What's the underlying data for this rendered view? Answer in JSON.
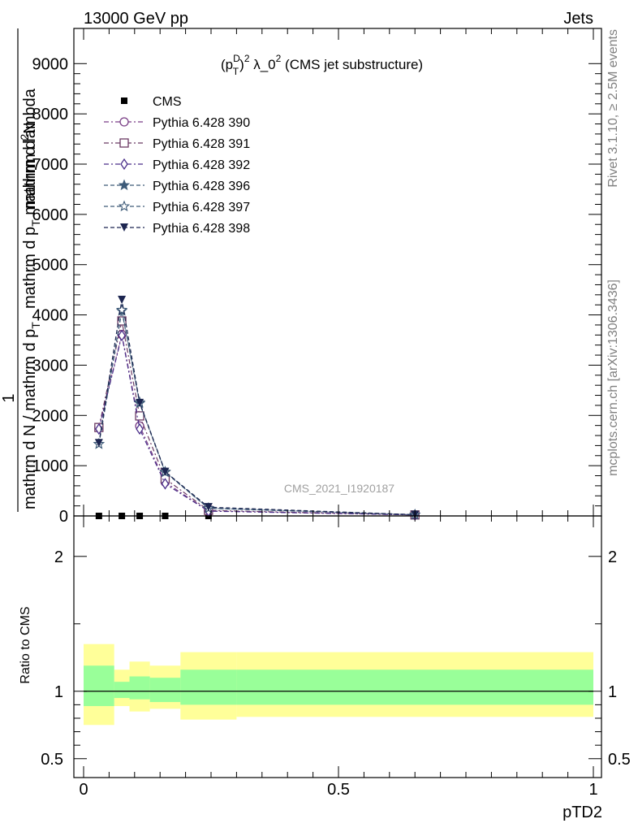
{
  "header": {
    "left": "13000 GeV pp",
    "right": "Jets"
  },
  "side": {
    "rivet": "Rivet 3.1.10, ≥ 2.5M events",
    "mcplots": "mcplots.cern.ch [arXiv:1306.3436]"
  },
  "watermark": "CMS_2021_I1920187",
  "chart_data": [
    {
      "type": "line",
      "title": "(p_T^D)^2 λ_0^2 (CMS jet substructure)",
      "title_parts": {
        "pre": "(p",
        "sup1": "D",
        "sub1": "T",
        "mid": ")",
        "sup2": "2",
        "post": " λ_0",
        "sup3": "2",
        "end": " (CMS jet substructure)"
      },
      "ylabel": "1 / mathrm d N / mathrm d p_T mathrm d p_T mathrm d lambda mathrm d^2N",
      "ylabel_parts": {
        "numerator": "1",
        "line1": "mathrm d N / mathrm d p",
        "line1_sub": "T",
        "line2": "mathrm d p",
        "line2_sub": "T",
        "line2_post": " mathrm d lambda",
        "line3": "mathrm d",
        "line3_sup": "2",
        "line3_post": "N"
      },
      "ylim": [
        0,
        9700
      ],
      "y_ticks": [
        0,
        1000,
        2000,
        3000,
        4000,
        5000,
        6000,
        7000,
        8000,
        9000
      ],
      "y_tick_labels": [
        "0",
        "1000",
        "2000",
        "3000",
        "4000",
        "5000",
        "6000",
        "7000",
        "8000",
        "9000"
      ],
      "xlim": [
        0,
        1
      ],
      "x": [
        0.03,
        0.075,
        0.11,
        0.16,
        0.245,
        0.65
      ],
      "series": [
        {
          "name": "CMS",
          "marker": "square-filled",
          "color": "#000000",
          "values": [
            0,
            0,
            0,
            0,
            0,
            0
          ]
        },
        {
          "name": "Pythia 6.428 390",
          "marker": "circle-open",
          "color": "#7a3f86",
          "values": [
            1760,
            3610,
            1790,
            670,
            100,
            20
          ]
        },
        {
          "name": "Pythia 6.428 391",
          "marker": "square-open",
          "color": "#6b3a63",
          "values": [
            1760,
            3880,
            1990,
            740,
            110,
            20
          ]
        },
        {
          "name": "Pythia 6.428 392",
          "marker": "diamond-open",
          "color": "#4b2f8a",
          "values": [
            1730,
            3590,
            1730,
            640,
            95,
            20
          ]
        },
        {
          "name": "Pythia 6.428 396",
          "marker": "star-filled",
          "color": "#3d5a78",
          "values": [
            1430,
            4080,
            2240,
            870,
            150,
            25
          ]
        },
        {
          "name": "Pythia 6.428 397",
          "marker": "star-open",
          "color": "#3d5a78",
          "values": [
            1430,
            4100,
            2260,
            880,
            155,
            25
          ]
        },
        {
          "name": "Pythia 6.428 398",
          "marker": "triangle-down-filled",
          "color": "#1c2550",
          "values": [
            1450,
            4300,
            2250,
            880,
            175,
            25
          ]
        }
      ],
      "legend_placement": "top-left"
    },
    {
      "type": "area",
      "ylabel": "Ratio to CMS",
      "xlabel": "pTD2",
      "xlim": [
        0,
        1
      ],
      "x_ticks": [
        0,
        0.5,
        1
      ],
      "x_tick_labels": [
        "0",
        "0.5",
        "1"
      ],
      "ylim": [
        0.36,
        2.3
      ],
      "y_ticks": [
        0.5,
        1,
        2
      ],
      "y_tick_labels": [
        "0.5",
        "1",
        "2"
      ],
      "bin_edges": [
        0,
        0.06,
        0.09,
        0.13,
        0.19,
        0.3,
        1.0
      ],
      "band_2sigma_upper": [
        1.35,
        1.16,
        1.22,
        1.19,
        1.29,
        1.29
      ],
      "band_2sigma_lower": [
        0.75,
        0.89,
        0.85,
        0.87,
        0.79,
        0.81
      ],
      "band_1sigma_upper": [
        1.19,
        1.07,
        1.11,
        1.1,
        1.16,
        1.16
      ],
      "band_1sigma_lower": [
        0.89,
        0.95,
        0.94,
        0.92,
        0.9,
        0.9
      ],
      "reference": 1,
      "colors": {
        "band_1sigma": "#99ff99",
        "band_2sigma": "#ffff99",
        "reference": "#000000"
      }
    }
  ]
}
